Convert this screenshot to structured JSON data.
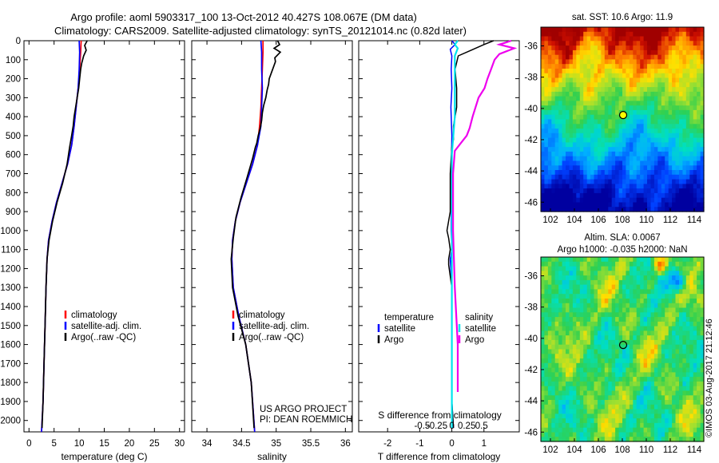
{
  "header": {
    "title_line1": "Argo profile: aoml 5903317_100 13-Oct-2012 40.427S 108.067E (DM data)",
    "title_line2": "Climatology: CARS2009. Satellite-adjusted climatology: synTS_20121014.nc (0.82d later)"
  },
  "project_note": {
    "line1": "US ARGO PROJECT",
    "line2": "PI: DEAN ROEMMICH"
  },
  "colors": {
    "climatology": "#ff0000",
    "satellite": "#0000ff",
    "argo": "#000000",
    "s_satellite": "#00e5ee",
    "s_argo": "#ee00ee",
    "marker": "#ffff00"
  },
  "credit": "©IMOS 03-Aug-2017 21:12:46",
  "chart_data": [
    {
      "type": "line",
      "id": "temperature",
      "xlabel": "temperature (deg C)",
      "ylabel": "",
      "xlim": [
        -1,
        31
      ],
      "ylim": [
        2060,
        0
      ],
      "xticks": [
        0,
        5,
        10,
        15,
        20,
        25,
        30
      ],
      "yticks": [
        0,
        100,
        200,
        300,
        400,
        500,
        600,
        700,
        800,
        900,
        1000,
        1100,
        1200,
        1300,
        1400,
        1500,
        1600,
        1700,
        1800,
        1900,
        2000
      ],
      "legend": [
        "climatology",
        "satellite-adj. clim.",
        "Argo(..raw -QC)"
      ],
      "series": [
        {
          "name": "climatology",
          "points": [
            [
              10.4,
              0
            ],
            [
              10.3,
              60
            ],
            [
              10.1,
              150
            ],
            [
              9.8,
              250
            ],
            [
              9.4,
              350
            ],
            [
              9.0,
              450
            ],
            [
              8.5,
              550
            ],
            [
              7.7,
              650
            ],
            [
              6.6,
              750
            ],
            [
              5.5,
              850
            ],
            [
              4.6,
              950
            ],
            [
              3.9,
              1050
            ],
            [
              3.6,
              1150
            ],
            [
              3.4,
              1300
            ],
            [
              3.2,
              1500
            ],
            [
              3.0,
              1700
            ],
            [
              2.8,
              1900
            ],
            [
              2.5,
              2060
            ]
          ]
        },
        {
          "name": "satellite-adj. clim.",
          "points": [
            [
              10.0,
              0
            ],
            [
              10.1,
              60
            ],
            [
              10.0,
              150
            ],
            [
              9.8,
              250
            ],
            [
              9.4,
              350
            ],
            [
              9.0,
              450
            ],
            [
              8.5,
              550
            ],
            [
              7.7,
              650
            ],
            [
              6.6,
              750
            ],
            [
              5.5,
              850
            ],
            [
              4.6,
              950
            ],
            [
              3.9,
              1050
            ],
            [
              3.6,
              1150
            ],
            [
              3.4,
              1300
            ],
            [
              3.2,
              1500
            ],
            [
              3.0,
              1700
            ],
            [
              2.8,
              1900
            ],
            [
              2.5,
              2060
            ]
          ]
        },
        {
          "name": "Argo(..raw -QC)",
          "points": [
            [
              11.6,
              0
            ],
            [
              11.1,
              25
            ],
            [
              11.4,
              50
            ],
            [
              10.9,
              80
            ],
            [
              10.5,
              120
            ],
            [
              10.3,
              150
            ],
            [
              10.1,
              200
            ],
            [
              9.9,
              250
            ],
            [
              9.6,
              300
            ],
            [
              9.3,
              350
            ],
            [
              9.0,
              400
            ],
            [
              8.8,
              450
            ],
            [
              8.5,
              500
            ],
            [
              8.1,
              560
            ],
            [
              7.6,
              650
            ],
            [
              6.7,
              750
            ],
            [
              5.6,
              850
            ],
            [
              4.7,
              950
            ],
            [
              4.0,
              1050
            ],
            [
              3.6,
              1150
            ],
            [
              3.4,
              1300
            ],
            [
              3.2,
              1500
            ],
            [
              3.0,
              1700
            ],
            [
              2.8,
              1900
            ],
            [
              2.6,
              2040
            ]
          ]
        }
      ]
    },
    {
      "type": "line",
      "id": "salinity",
      "xlabel": "salinity",
      "ylabel": "",
      "xlim": [
        33.78,
        36.1
      ],
      "ylim": [
        2060,
        0
      ],
      "xticks": [
        34,
        34.5,
        35,
        35.5,
        36
      ],
      "xticklabels": [
        "34",
        "34.5",
        "35",
        "35.5",
        "36"
      ],
      "legend": [
        "climatology",
        "satellite-adj. clim.",
        "Argo(..raw -QC)"
      ],
      "series": [
        {
          "name": "climatology",
          "points": [
            [
              34.81,
              0
            ],
            [
              34.81,
              60
            ],
            [
              34.8,
              150
            ],
            [
              34.79,
              250
            ],
            [
              34.78,
              350
            ],
            [
              34.76,
              450
            ],
            [
              34.73,
              550
            ],
            [
              34.66,
              650
            ],
            [
              34.57,
              750
            ],
            [
              34.48,
              850
            ],
            [
              34.41,
              950
            ],
            [
              34.37,
              1050
            ],
            [
              34.36,
              1150
            ],
            [
              34.38,
              1300
            ],
            [
              34.46,
              1450
            ],
            [
              34.56,
              1600
            ],
            [
              34.64,
              1800
            ],
            [
              34.69,
              2060
            ]
          ]
        },
        {
          "name": "satellite-adj. clim.",
          "points": [
            [
              34.78,
              0
            ],
            [
              34.79,
              60
            ],
            [
              34.79,
              150
            ],
            [
              34.8,
              250
            ],
            [
              34.79,
              350
            ],
            [
              34.78,
              450
            ],
            [
              34.73,
              550
            ],
            [
              34.66,
              650
            ],
            [
              34.57,
              750
            ],
            [
              34.48,
              850
            ],
            [
              34.41,
              950
            ],
            [
              34.37,
              1050
            ],
            [
              34.36,
              1150
            ],
            [
              34.38,
              1300
            ],
            [
              34.46,
              1450
            ],
            [
              34.56,
              1600
            ],
            [
              34.64,
              1800
            ],
            [
              34.69,
              2060
            ]
          ]
        },
        {
          "name": "Argo(..raw -QC)",
          "points": [
            [
              35.02,
              0
            ],
            [
              35.05,
              20
            ],
            [
              34.97,
              40
            ],
            [
              35.06,
              60
            ],
            [
              34.98,
              90
            ],
            [
              34.99,
              110
            ],
            [
              34.96,
              140
            ],
            [
              34.93,
              170
            ],
            [
              34.9,
              200
            ],
            [
              34.89,
              230
            ],
            [
              34.87,
              260
            ],
            [
              34.85,
              300
            ],
            [
              34.82,
              340
            ],
            [
              34.8,
              380
            ],
            [
              34.79,
              420
            ],
            [
              34.77,
              460
            ],
            [
              34.74,
              500
            ],
            [
              34.72,
              540
            ],
            [
              34.7,
              560
            ],
            [
              34.66,
              620
            ],
            [
              34.58,
              720
            ],
            [
              34.49,
              830
            ],
            [
              34.42,
              930
            ],
            [
              34.38,
              1040
            ],
            [
              34.35,
              1150
            ],
            [
              34.37,
              1300
            ],
            [
              34.45,
              1450
            ],
            [
              34.56,
              1600
            ],
            [
              34.64,
              1800
            ],
            [
              34.68,
              2040
            ]
          ]
        }
      ]
    },
    {
      "type": "line",
      "id": "difference",
      "xlabel": "T difference from climatology",
      "xlabel_top": "S difference from climatology",
      "xlim": [
        -2.9,
        2.1
      ],
      "ylim": [
        2060,
        0
      ],
      "xticks": [
        -2,
        -1,
        0,
        1
      ],
      "xticklabels_T": [
        "-2",
        "-1",
        "0",
        "1"
      ],
      "sticks": [
        -0.5,
        -0.25,
        0,
        0.25,
        0.5
      ],
      "sticklabels": [
        "-0.5",
        "-0.25",
        "0",
        "0.25",
        "0.5"
      ],
      "legend_headers": [
        "temperature",
        "salinity"
      ],
      "legend": [
        "satellite",
        "Argo",
        "satellite",
        "Argo"
      ],
      "series": [
        {
          "name": "T satellite",
          "points": [
            [
              0.0,
              0
            ],
            [
              0.1,
              20
            ],
            [
              -0.05,
              45
            ],
            [
              0.0,
              80
            ],
            [
              -0.02,
              150
            ],
            [
              0.0,
              250
            ],
            [
              -0.03,
              350
            ],
            [
              0.0,
              500
            ],
            [
              -0.02,
              700
            ],
            [
              -0.02,
              1000
            ],
            [
              0.0,
              1100
            ],
            [
              -0.05,
              1150
            ],
            [
              0.0,
              1300
            ],
            [
              0.0,
              1600
            ],
            [
              0.0,
              1900
            ],
            [
              0.05,
              2040
            ]
          ]
        },
        {
          "name": "T Argo",
          "points": [
            [
              1.3,
              0
            ],
            [
              1.0,
              20
            ],
            [
              0.6,
              50
            ],
            [
              0.2,
              80
            ],
            [
              0.1,
              150
            ],
            [
              0.15,
              250
            ],
            [
              0.15,
              350
            ],
            [
              0.05,
              450
            ],
            [
              0.05,
              520
            ],
            [
              0.0,
              560
            ],
            [
              -0.05,
              700
            ],
            [
              -0.05,
              900
            ],
            [
              -0.15,
              1000
            ],
            [
              -0.1,
              1040
            ],
            [
              -0.05,
              1100
            ],
            [
              -0.1,
              1150
            ],
            [
              -0.1,
              1180
            ],
            [
              0.0,
              1300
            ],
            [
              0.0,
              1600
            ],
            [
              0.0,
              1900
            ],
            [
              0.05,
              2040
            ]
          ]
        },
        {
          "name": "S satellite",
          "points": [
            [
              0.1,
              0
            ],
            [
              0.05,
              20
            ],
            [
              0.1,
              40
            ],
            [
              0.05,
              80
            ],
            [
              0.05,
              200
            ],
            [
              0.05,
              400
            ],
            [
              0.0,
              600
            ],
            [
              0.0,
              900
            ],
            [
              0.0,
              1200
            ],
            [
              0.0,
              1500
            ],
            [
              0.0,
              1800
            ],
            [
              0.0,
              2040
            ]
          ]
        },
        {
          "name": "S Argo",
          "points": [
            [
              1.0,
              0
            ],
            [
              0.8,
              20
            ],
            [
              1.05,
              40
            ],
            [
              0.8,
              70
            ],
            [
              0.72,
              100
            ],
            [
              0.66,
              150
            ],
            [
              0.6,
              200
            ],
            [
              0.55,
              250
            ],
            [
              0.45,
              300
            ],
            [
              0.35,
              400
            ],
            [
              0.3,
              460
            ],
            [
              0.25,
              500
            ],
            [
              0.15,
              540
            ],
            [
              0.05,
              580
            ],
            [
              0.02,
              700
            ],
            [
              0.02,
              1000
            ],
            [
              0.05,
              1300
            ],
            [
              0.1,
              1600
            ],
            [
              0.1,
              1800
            ],
            [
              0.1,
              1850
            ]
          ]
        }
      ]
    },
    {
      "type": "heatmap",
      "id": "sst_map",
      "title": "sat. SST: 10.6 Argo: 11.9",
      "xlim": [
        101.2,
        114.8
      ],
      "ylim": [
        -46.6,
        -34.8
      ],
      "xticks": [
        102,
        104,
        106,
        108,
        110,
        112,
        114
      ],
      "yticks": [
        -36,
        -38,
        -40,
        -42,
        -44,
        -46
      ],
      "marker": [
        108.067,
        -40.427
      ]
    },
    {
      "type": "heatmap",
      "id": "sla_map",
      "title_line1": "Altim. SLA: 0.0067",
      "title_line2": "Argo h1000: -0.035 h2000: NaN",
      "xlim": [
        101.2,
        114.8
      ],
      "ylim": [
        -46.6,
        -34.8
      ],
      "xticks": [
        102,
        104,
        106,
        108,
        110,
        112,
        114
      ],
      "yticks": [
        -36,
        -38,
        -40,
        -42,
        -44,
        -46
      ],
      "marker": [
        108.067,
        -40.427
      ]
    }
  ]
}
